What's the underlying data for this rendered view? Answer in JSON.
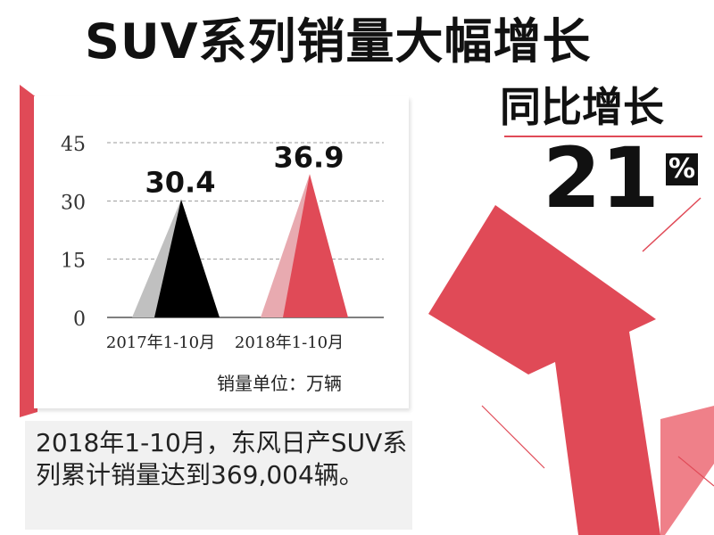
{
  "title": "SUV系列销量大幅增长",
  "growth": {
    "label": "同比增长",
    "value": "21",
    "unit": "%"
  },
  "note": "2018年1-10月，东风日产SUV系列累计销量达到369,004辆。",
  "colors": {
    "accent": "#e04a57",
    "black": "#000000",
    "grey": "#c0c0c0",
    "pink": "#e8aab0"
  },
  "chart_data": {
    "type": "area",
    "categories": [
      "2017年1-10月",
      "2018年1-10月"
    ],
    "values": [
      30.4,
      36.9
    ],
    "value_labels": [
      "30.4",
      "36.9"
    ],
    "y_ticks": [
      "0",
      "15",
      "30",
      "45"
    ],
    "ylim": [
      0,
      45
    ],
    "unit_label": "销量单位：万辆",
    "grid": true
  }
}
